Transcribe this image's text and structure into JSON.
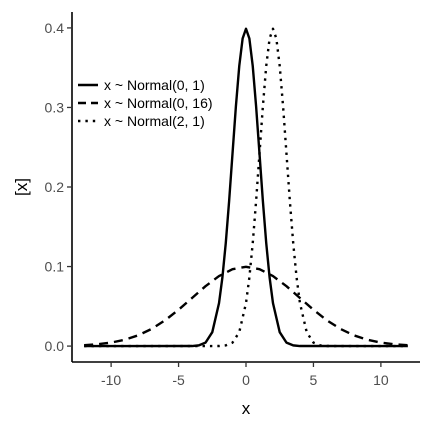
{
  "chart_data": {
    "type": "line",
    "title": "",
    "xlabel": "x",
    "ylabel": "[x]",
    "xlim": [
      -12.9,
      12.9
    ],
    "ylim": [
      -0.02,
      0.42
    ],
    "x_ticks": [
      -10,
      -5,
      0,
      5,
      10
    ],
    "x_tick_labels": [
      "-10",
      "-5",
      "0",
      "5",
      "10"
    ],
    "y_ticks": [
      0.0,
      0.1,
      0.2,
      0.3,
      0.4
    ],
    "y_tick_labels": [
      "0.0",
      "0.1",
      "0.2",
      "0.3",
      "0.4"
    ],
    "grid": false,
    "legend_position": "top-left",
    "series": [
      {
        "name": "x ~ Normal(0, 1)",
        "linestyle": "solid",
        "color": "#000000",
        "x": [
          -12,
          -4,
          -3.5,
          -3,
          -2.5,
          -2,
          -1.75,
          -1.5,
          -1.25,
          -1,
          -0.75,
          -0.5,
          -0.25,
          0,
          0.25,
          0.5,
          0.75,
          1,
          1.25,
          1.5,
          1.75,
          2,
          2.5,
          3,
          3.5,
          4,
          12
        ],
        "y": [
          0.0,
          0.0001,
          0.0009,
          0.0044,
          0.0175,
          0.054,
          0.0863,
          0.1295,
          0.1826,
          0.242,
          0.3011,
          0.3521,
          0.3867,
          0.3989,
          0.3867,
          0.3521,
          0.3011,
          0.242,
          0.1826,
          0.1295,
          0.0863,
          0.054,
          0.0175,
          0.0044,
          0.0009,
          0.0001,
          0.0
        ]
      },
      {
        "name": "x ~ Normal(0, 16)",
        "linestyle": "dashed",
        "color": "#000000",
        "x": [
          -12,
          -11,
          -10,
          -9,
          -8,
          -7,
          -6,
          -5,
          -4,
          -3,
          -2,
          -1,
          0,
          1,
          2,
          3,
          4,
          5,
          6,
          7,
          8,
          9,
          10,
          11,
          12
        ],
        "y": [
          0.0011,
          0.0023,
          0.0044,
          0.0079,
          0.0135,
          0.0216,
          0.0324,
          0.0457,
          0.0605,
          0.0753,
          0.088,
          0.0967,
          0.0997,
          0.0967,
          0.088,
          0.0753,
          0.0605,
          0.0457,
          0.0324,
          0.0216,
          0.0135,
          0.0079,
          0.0044,
          0.0023,
          0.0011
        ]
      },
      {
        "name": "x ~ Normal(2, 1)",
        "linestyle": "dotted",
        "color": "#000000",
        "x": [
          -12,
          -2,
          -1.5,
          -1,
          -0.5,
          0,
          0.25,
          0.5,
          0.75,
          1,
          1.25,
          1.5,
          1.75,
          2,
          2.25,
          2.5,
          2.75,
          3,
          3.25,
          3.5,
          3.75,
          4,
          4.5,
          5,
          5.5,
          6,
          12
        ],
        "y": [
          0.0,
          0.0001,
          0.0009,
          0.0044,
          0.0175,
          0.054,
          0.0863,
          0.1295,
          0.1826,
          0.242,
          0.3011,
          0.3521,
          0.3867,
          0.3989,
          0.3867,
          0.3521,
          0.3011,
          0.242,
          0.1826,
          0.1295,
          0.0863,
          0.054,
          0.0175,
          0.0044,
          0.0009,
          0.0001,
          0.0
        ]
      }
    ]
  }
}
